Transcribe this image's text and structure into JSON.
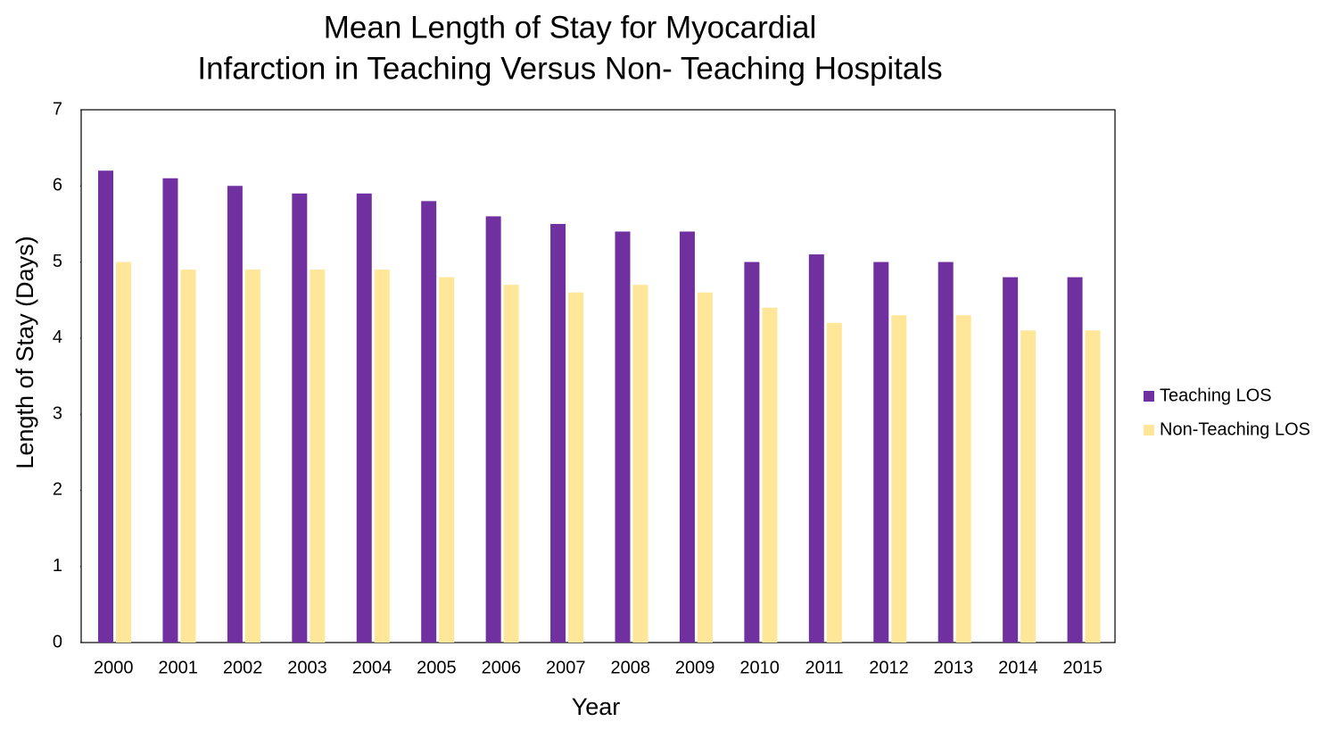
{
  "chart_data": {
    "type": "bar",
    "title": [
      "Mean Length of Stay for Myocardial",
      "Infarction in Teaching Versus Non- Teaching Hospitals"
    ],
    "x_label": "Year",
    "y_label": "Length of Stay (Days)",
    "categories": [
      "2000",
      "2001",
      "2002",
      "2003",
      "2004",
      "2005",
      "2006",
      "2007",
      "2008",
      "2009",
      "2010",
      "2011",
      "2012",
      "2013",
      "2014",
      "2015"
    ],
    "series": [
      {
        "name": "Teaching LOS",
        "color": "#7030a0",
        "values": [
          6.2,
          6.1,
          6.0,
          5.9,
          5.9,
          5.8,
          5.6,
          5.5,
          5.4,
          5.4,
          5.0,
          5.1,
          5.0,
          5.0,
          4.8,
          4.8
        ]
      },
      {
        "name": "Non-Teaching LOS",
        "color": "#ffe699",
        "values": [
          5.0,
          4.9,
          4.9,
          4.9,
          4.9,
          4.8,
          4.7,
          4.6,
          4.7,
          4.6,
          4.4,
          4.2,
          4.3,
          4.3,
          4.1,
          4.1
        ]
      }
    ],
    "ylim": [
      0,
      7
    ],
    "yticks": [
      0,
      1,
      2,
      3,
      4,
      5,
      6,
      7
    ],
    "grid": false,
    "legend": "right"
  }
}
